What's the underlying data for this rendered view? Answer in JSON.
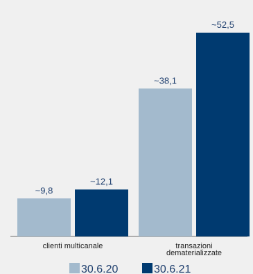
{
  "chart_data": {
    "type": "bar",
    "categories": [
      "clienti multicanale",
      "transazioni\ndematerializzate"
    ],
    "series": [
      {
        "name": "30.6.20",
        "values": [
          9.8,
          38.1
        ],
        "labels": [
          "~9,8",
          "~38,1"
        ],
        "color": "#a3bacd"
      },
      {
        "name": "30.6.21",
        "values": [
          12.1,
          52.5
        ],
        "labels": [
          "~12,1",
          "~52,5"
        ],
        "color": "#003a70"
      }
    ],
    "ylim": [
      0,
      55
    ],
    "grid": false,
    "legend": "bottom",
    "label_color": "#1f3f6e"
  }
}
